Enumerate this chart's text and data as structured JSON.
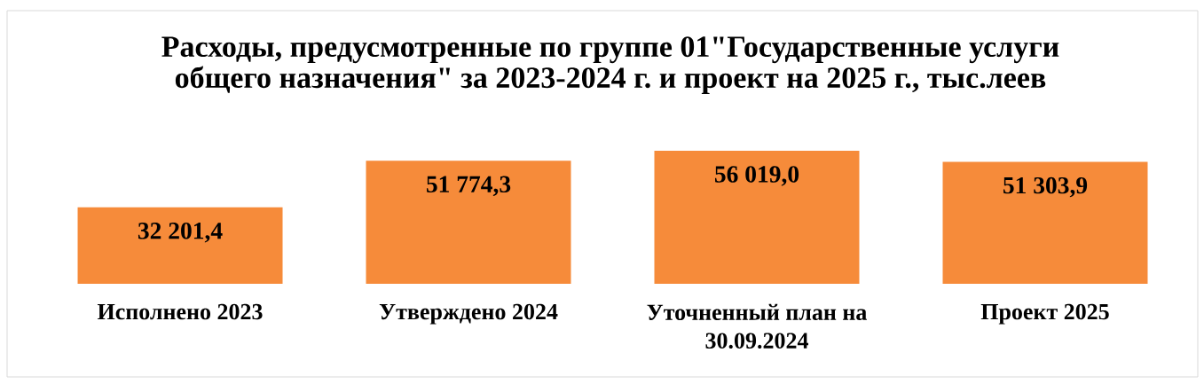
{
  "chart_data": {
    "type": "bar",
    "title": "Расходы, предусмотренные по группе 01\"Государственные услуги общего назначения\" за 2023-2024 г. и проект на 2025 г., тыс.леев",
    "categories": [
      "Исполнено 2023",
      "Утверждено 2024",
      "Уточненный план на 30.09.2024",
      "Проект 2025"
    ],
    "values": [
      32201.4,
      51774.3,
      56019.0,
      51303.9
    ],
    "value_labels": [
      "32 201,4",
      "51 774,3",
      "56 019,0",
      "51 303,9"
    ],
    "color": "#f68b3a"
  }
}
